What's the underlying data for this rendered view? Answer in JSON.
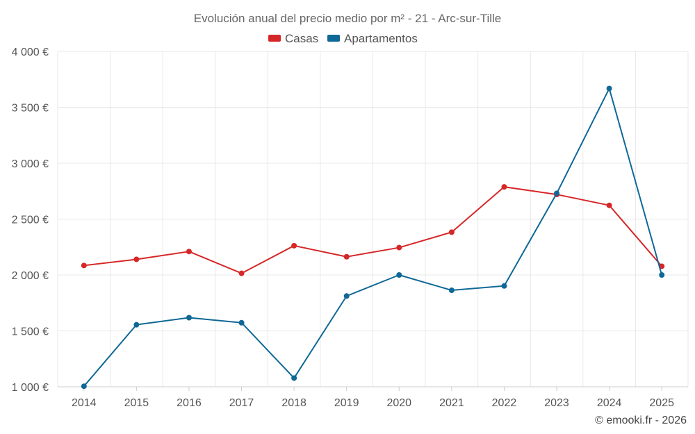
{
  "chart_data": {
    "type": "line",
    "title": "Evolución anual del precio medio por m² - 21 - Arc-sur-Tille",
    "categories": [
      "2014",
      "2015",
      "2016",
      "2017",
      "2018",
      "2019",
      "2020",
      "2021",
      "2022",
      "2023",
      "2024",
      "2025"
    ],
    "series": [
      {
        "name": "Casas",
        "color": "#d62728",
        "values": [
          2085,
          2140,
          2210,
          2015,
          2262,
          2163,
          2245,
          2383,
          2788,
          2720,
          2623,
          2078
        ]
      },
      {
        "name": "Apartamentos",
        "color": "#0f6896",
        "values": [
          1005,
          1555,
          1618,
          1573,
          1078,
          1812,
          2000,
          1863,
          1902,
          2730,
          3668,
          2000
        ]
      }
    ],
    "ylim": [
      1000,
      4000
    ],
    "yticks": [
      1000,
      1500,
      2000,
      2500,
      3000,
      3500,
      4000
    ],
    "ytick_labels": [
      "1 000 €",
      "1 500 €",
      "2 000 €",
      "2 500 €",
      "3 000 €",
      "3 500 €",
      "4 000 €"
    ],
    "xlabel": "",
    "ylabel": "",
    "legend": "top-center",
    "grid": true
  },
  "credit": "© emooki.fr - 2026"
}
